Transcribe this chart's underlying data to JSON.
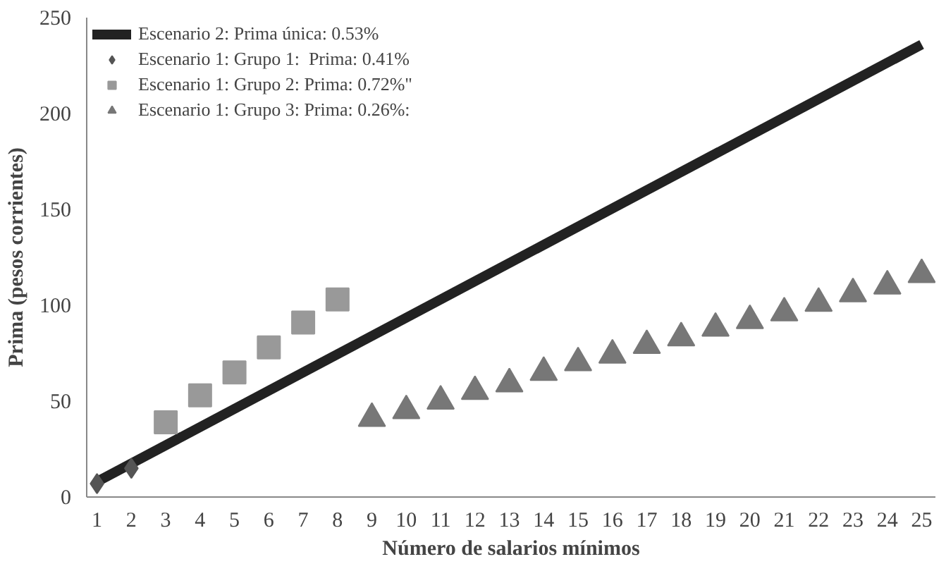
{
  "chart_data": {
    "type": "scatter",
    "xlabel": "Número de salarios mínimos",
    "ylabel": "Prima (pesos corrientes)",
    "xlim": [
      0.7,
      25.4
    ],
    "xticks": [
      1,
      2,
      3,
      4,
      5,
      6,
      7,
      8,
      9,
      10,
      11,
      12,
      13,
      14,
      15,
      16,
      17,
      18,
      19,
      20,
      21,
      22,
      23,
      24,
      25
    ],
    "ylim": [
      0,
      250
    ],
    "yticks": [
      0,
      50,
      100,
      150,
      200,
      250
    ],
    "grid": false,
    "legend": "top left",
    "series": [
      {
        "name": "Escenario 2: Prima única: 0.53%",
        "type": "line",
        "color": "#222222",
        "x": [
          1,
          25
        ],
        "values": [
          8,
          236
        ],
        "marker": "none"
      },
      {
        "name": "Escenario 1: Grupo 1:  Prima: 0.41%",
        "color": "#555555",
        "marker": "diamond",
        "x": [
          1,
          2
        ],
        "values": [
          7,
          15
        ]
      },
      {
        "name": "Escenario 1: Grupo 2: Prima: 0.72%\"",
        "color": "#999999",
        "marker": "square",
        "x": [
          3,
          4,
          5,
          6,
          7,
          8
        ],
        "values": [
          39,
          53,
          65,
          78,
          91,
          103
        ]
      },
      {
        "name": "Escenario 1: Grupo 3: Prima: 0.26%:",
        "color": "#777777",
        "marker": "triangle",
        "x": [
          9,
          10,
          11,
          12,
          13,
          14,
          15,
          16,
          17,
          18,
          19,
          20,
          21,
          22,
          23,
          24,
          25
        ],
        "values": [
          41,
          45,
          50,
          55,
          59,
          65,
          70,
          74,
          79,
          83,
          88,
          92,
          96,
          101,
          106,
          110,
          116
        ]
      }
    ]
  }
}
